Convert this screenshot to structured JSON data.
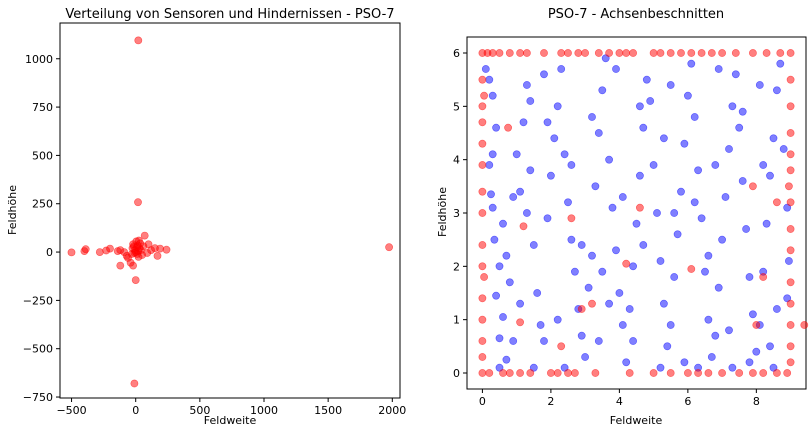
{
  "chart_data": [
    {
      "type": "scatter",
      "title": "Verteilung von Sensoren und Hindernissen - PSO-7",
      "xlabel": "Feldweite",
      "ylabel": "Feldhöhe",
      "xlim": [
        -590,
        2060
      ],
      "ylim": [
        -755,
        1185
      ],
      "xticks": [
        -500,
        0,
        500,
        1000,
        1500,
        2000
      ],
      "yticks": [
        -750,
        -500,
        -250,
        0,
        250,
        500,
        750,
        1000
      ],
      "grid": false,
      "series": [
        {
          "color": "#ff0000",
          "points": [
            [
              20,
              1095
            ],
            [
              18,
              258
            ],
            [
              -500,
              -2
            ],
            [
              -400,
              5
            ],
            [
              -390,
              15
            ],
            [
              -280,
              0
            ],
            [
              -230,
              8
            ],
            [
              -200,
              18
            ],
            [
              -140,
              5
            ],
            [
              -120,
              10
            ],
            [
              -90,
              0
            ],
            [
              -70,
              -20
            ],
            [
              -60,
              -30
            ],
            [
              -40,
              -55
            ],
            [
              -30,
              -10
            ],
            [
              -25,
              20
            ],
            [
              -20,
              40
            ],
            [
              -15,
              30
            ],
            [
              -10,
              -5
            ],
            [
              -5,
              10
            ],
            [
              0,
              0
            ],
            [
              5,
              55
            ],
            [
              10,
              25
            ],
            [
              12,
              -10
            ],
            [
              15,
              35
            ],
            [
              20,
              5
            ],
            [
              22,
              -25
            ],
            [
              25,
              60
            ],
            [
              30,
              20
            ],
            [
              35,
              45
            ],
            [
              40,
              10
            ],
            [
              50,
              -15
            ],
            [
              60,
              30
            ],
            [
              70,
              85
            ],
            [
              90,
              -5
            ],
            [
              100,
              40
            ],
            [
              120,
              10
            ],
            [
              150,
              20
            ],
            [
              170,
              -20
            ],
            [
              190,
              18
            ],
            [
              240,
              12
            ],
            [
              -120,
              -70
            ],
            [
              -20,
              -70
            ],
            [
              0,
              -145
            ],
            [
              -10,
              -680
            ],
            [
              1975,
              25
            ]
          ]
        }
      ]
    },
    {
      "type": "scatter",
      "title": "PSO-7 - Achsenbeschnitten",
      "xlabel": "Feldweite",
      "ylabel": "Feldhöhe",
      "xlim": [
        -0.45,
        9.45
      ],
      "ylim": [
        -0.3,
        6.3
      ],
      "xticks": [
        0,
        2,
        4,
        6,
        8
      ],
      "yticks": [
        0,
        1,
        2,
        3,
        4,
        5,
        6
      ],
      "grid": false,
      "series": [
        {
          "color": "#0000ff",
          "points": [
            [
              0.1,
              5.7
            ],
            [
              0.2,
              5.5
            ],
            [
              0.3,
              5.2
            ],
            [
              0.4,
              4.6
            ],
            [
              0.2,
              3.9
            ],
            [
              0.25,
              3.35
            ],
            [
              0.3,
              3.1
            ],
            [
              0.35,
              2.5
            ],
            [
              0.5,
              2.0
            ],
            [
              0.4,
              1.45
            ],
            [
              0.6,
              1.05
            ],
            [
              0.5,
              0.65
            ],
            [
              0.7,
              0.25
            ],
            [
              0.9,
              0.6
            ],
            [
              0.7,
              2.2
            ],
            [
              0.8,
              1.7
            ],
            [
              1.0,
              4.1
            ],
            [
              1.1,
              3.4
            ],
            [
              1.2,
              4.7
            ],
            [
              1.3,
              5.4
            ],
            [
              1.4,
              5.1
            ],
            [
              1.3,
              3.0
            ],
            [
              1.5,
              2.4
            ],
            [
              1.6,
              1.5
            ],
            [
              1.7,
              0.9
            ],
            [
              1.8,
              0.6
            ],
            [
              1.9,
              2.9
            ],
            [
              2.0,
              3.7
            ],
            [
              2.1,
              4.4
            ],
            [
              2.2,
              5.0
            ],
            [
              2.3,
              5.7
            ],
            [
              2.4,
              4.1
            ],
            [
              2.5,
              3.2
            ],
            [
              2.6,
              2.5
            ],
            [
              2.7,
              1.9
            ],
            [
              2.8,
              1.2
            ],
            [
              2.9,
              0.7
            ],
            [
              3.0,
              0.3
            ],
            [
              3.1,
              1.6
            ],
            [
              3.2,
              2.2
            ],
            [
              3.3,
              3.5
            ],
            [
              3.4,
              4.5
            ],
            [
              3.5,
              5.3
            ],
            [
              3.6,
              5.9
            ],
            [
              3.7,
              4.0
            ],
            [
              3.8,
              3.1
            ],
            [
              3.9,
              2.3
            ],
            [
              4.0,
              1.5
            ],
            [
              4.1,
              0.9
            ],
            [
              4.2,
              0.2
            ],
            [
              4.3,
              1.2
            ],
            [
              4.4,
              2.0
            ],
            [
              4.5,
              2.8
            ],
            [
              4.6,
              3.7
            ],
            [
              4.7,
              4.6
            ],
            [
              4.8,
              5.5
            ],
            [
              4.9,
              5.1
            ],
            [
              5.0,
              3.9
            ],
            [
              5.1,
              3.0
            ],
            [
              5.2,
              2.1
            ],
            [
              5.3,
              1.3
            ],
            [
              5.4,
              0.5
            ],
            [
              5.5,
              0.9
            ],
            [
              5.6,
              1.8
            ],
            [
              5.7,
              2.6
            ],
            [
              5.8,
              3.4
            ],
            [
              5.9,
              4.3
            ],
            [
              6.0,
              5.2
            ],
            [
              6.1,
              5.8
            ],
            [
              6.2,
              4.8
            ],
            [
              6.3,
              3.8
            ],
            [
              6.4,
              2.9
            ],
            [
              6.5,
              1.9
            ],
            [
              6.6,
              1.0
            ],
            [
              6.7,
              0.3
            ],
            [
              6.8,
              0.7
            ],
            [
              6.9,
              1.6
            ],
            [
              7.0,
              2.5
            ],
            [
              7.1,
              3.3
            ],
            [
              7.2,
              4.2
            ],
            [
              7.3,
              5.0
            ],
            [
              7.4,
              5.6
            ],
            [
              7.5,
              4.6
            ],
            [
              7.6,
              3.6
            ],
            [
              7.7,
              2.7
            ],
            [
              7.8,
              1.8
            ],
            [
              7.9,
              1.1
            ],
            [
              8.0,
              0.4
            ],
            [
              8.1,
              0.9
            ],
            [
              8.2,
              1.9
            ],
            [
              8.3,
              2.8
            ],
            [
              8.4,
              3.7
            ],
            [
              8.5,
              4.4
            ],
            [
              8.6,
              5.3
            ],
            [
              8.7,
              5.8
            ],
            [
              8.8,
              4.2
            ],
            [
              8.9,
              3.1
            ],
            [
              8.95,
              2.1
            ],
            [
              8.6,
              1.2
            ],
            [
              8.4,
              0.5
            ],
            [
              7.8,
              0.2
            ],
            [
              7.2,
              0.8
            ],
            [
              6.6,
              2.2
            ],
            [
              6.2,
              3.2
            ],
            [
              5.9,
              0.2
            ],
            [
              5.3,
              4.4
            ],
            [
              4.6,
              5.0
            ],
            [
              3.9,
              5.7
            ],
            [
              3.2,
              4.8
            ],
            [
              2.6,
              3.9
            ],
            [
              1.9,
              4.7
            ],
            [
              1.4,
              3.8
            ],
            [
              0.9,
              3.3
            ],
            [
              0.6,
              2.8
            ],
            [
              1.1,
              1.3
            ],
            [
              2.2,
              1.0
            ],
            [
              3.5,
              1.9
            ],
            [
              4.7,
              2.4
            ],
            [
              5.6,
              3.0
            ],
            [
              6.8,
              3.9
            ],
            [
              7.6,
              4.9
            ],
            [
              8.2,
              3.9
            ],
            [
              0.5,
              0.1
            ],
            [
              1.5,
              0.1
            ],
            [
              2.4,
              0.1
            ],
            [
              3.4,
              0.6
            ],
            [
              4.4,
              0.6
            ],
            [
              5.2,
              0.1
            ],
            [
              6.3,
              0.1
            ],
            [
              7.3,
              0.1
            ],
            [
              8.5,
              0.1
            ],
            [
              0.3,
              4.1
            ],
            [
              8.9,
              1.4
            ],
            [
              2.9,
              2.4
            ],
            [
              4.1,
              3.3
            ],
            [
              5.5,
              5.4
            ],
            [
              6.9,
              5.7
            ],
            [
              1.8,
              5.6
            ],
            [
              8.1,
              5.4
            ],
            [
              3.7,
              1.3
            ]
          ]
        },
        {
          "color": "#ff0000",
          "points": [
            [
              0.0,
              6.0
            ],
            [
              0.15,
              6.0
            ],
            [
              0.3,
              6.0
            ],
            [
              0.5,
              6.0
            ],
            [
              0.8,
              6.0
            ],
            [
              1.1,
              6.0
            ],
            [
              1.3,
              6.0
            ],
            [
              1.8,
              6.0
            ],
            [
              2.3,
              6.0
            ],
            [
              2.5,
              6.0
            ],
            [
              2.8,
              6.0
            ],
            [
              3.0,
              6.0
            ],
            [
              3.4,
              6.0
            ],
            [
              3.7,
              6.0
            ],
            [
              4.0,
              6.0
            ],
            [
              4.2,
              6.0
            ],
            [
              4.4,
              6.0
            ],
            [
              5.0,
              6.0
            ],
            [
              5.2,
              6.0
            ],
            [
              5.5,
              6.0
            ],
            [
              5.8,
              6.0
            ],
            [
              6.1,
              6.0
            ],
            [
              6.4,
              6.0
            ],
            [
              6.7,
              6.0
            ],
            [
              7.0,
              6.0
            ],
            [
              7.4,
              6.0
            ],
            [
              7.9,
              6.0
            ],
            [
              8.3,
              6.0
            ],
            [
              8.7,
              6.0
            ],
            [
              9.0,
              6.0
            ],
            [
              0.0,
              0.0
            ],
            [
              0.2,
              0.0
            ],
            [
              0.6,
              0.0
            ],
            [
              0.8,
              0.0
            ],
            [
              1.1,
              0.0
            ],
            [
              1.4,
              0.0
            ],
            [
              2.0,
              0.0
            ],
            [
              2.2,
              0.0
            ],
            [
              2.5,
              0.0
            ],
            [
              2.7,
              0.0
            ],
            [
              3.3,
              0.0
            ],
            [
              4.3,
              0.0
            ],
            [
              5.0,
              0.0
            ],
            [
              5.5,
              0.0
            ],
            [
              6.0,
              0.0
            ],
            [
              6.3,
              0.0
            ],
            [
              6.6,
              0.0
            ],
            [
              7.0,
              0.0
            ],
            [
              7.5,
              0.0
            ],
            [
              7.9,
              0.0
            ],
            [
              8.2,
              0.0
            ],
            [
              8.6,
              0.0
            ],
            [
              8.9,
              0.0
            ],
            [
              0.0,
              5.5
            ],
            [
              0.0,
              5.0
            ],
            [
              0.0,
              4.7
            ],
            [
              0.0,
              4.3
            ],
            [
              0.0,
              3.9
            ],
            [
              0.0,
              3.4
            ],
            [
              0.0,
              3.0
            ],
            [
              0.0,
              2.4
            ],
            [
              0.0,
              2.0
            ],
            [
              0.0,
              1.4
            ],
            [
              0.0,
              1.0
            ],
            [
              0.0,
              0.6
            ],
            [
              0.0,
              0.3
            ],
            [
              0.05,
              5.2
            ],
            [
              0.05,
              1.8
            ],
            [
              9.0,
              5.5
            ],
            [
              9.0,
              5.0
            ],
            [
              9.0,
              4.5
            ],
            [
              9.0,
              4.1
            ],
            [
              9.0,
              3.8
            ],
            [
              9.0,
              3.2
            ],
            [
              9.0,
              2.7
            ],
            [
              9.0,
              2.3
            ],
            [
              9.0,
              1.7
            ],
            [
              9.0,
              1.3
            ],
            [
              9.0,
              0.9
            ],
            [
              9.0,
              0.5
            ],
            [
              9.0,
              0.2
            ],
            [
              8.95,
              3.5
            ],
            [
              9.4,
              0.9
            ],
            [
              8.6,
              3.2
            ],
            [
              8.2,
              1.8
            ],
            [
              8.0,
              0.9
            ],
            [
              7.9,
              3.5
            ],
            [
              3.2,
              1.3
            ],
            [
              2.3,
              0.5
            ],
            [
              1.1,
              0.95
            ],
            [
              0.75,
              4.6
            ],
            [
              1.2,
              2.75
            ],
            [
              2.6,
              2.9
            ],
            [
              6.1,
              1.95
            ],
            [
              4.2,
              2.05
            ],
            [
              4.6,
              3.1
            ],
            [
              2.9,
              1.2
            ]
          ]
        }
      ]
    }
  ]
}
